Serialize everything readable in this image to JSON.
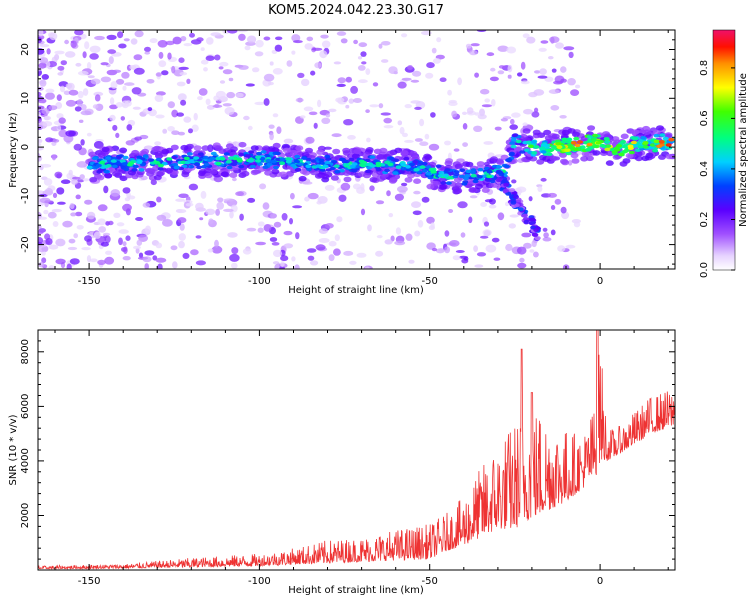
{
  "title": "KOM5.2024.042.23.30.G17",
  "chart_data": [
    {
      "type": "heatmap",
      "xlabel": "Height of straight line (km)",
      "ylabel": "Frequency (Hz)",
      "xlim": [
        -165,
        22
      ],
      "ylim": [
        -25,
        24
      ],
      "xticks": [
        -150,
        -100,
        -50,
        0
      ],
      "yticks": [
        -20,
        -10,
        0,
        10,
        20
      ],
      "colorbar": {
        "label": "Normalized spectral amplitude",
        "range": [
          0,
          0.95
        ],
        "ticks": [
          0.0,
          0.2,
          0.4,
          0.6,
          0.8
        ]
      },
      "ridge_frequency": {
        "x": [
          -165,
          -145,
          -125,
          -100,
          -85,
          -70,
          -55,
          -45,
          -35,
          -28,
          -25,
          -20,
          -10,
          -5,
          0,
          5,
          10,
          22
        ],
        "y": [
          -4,
          -3.5,
          -3,
          -2.5,
          -3.5,
          -3.5,
          -4,
          -6,
          -6,
          -5,
          1,
          0,
          0,
          0.5,
          1,
          -1,
          0.5,
          1
        ]
      }
    },
    {
      "type": "line",
      "xlabel": "Height of straight line (km)",
      "ylabel": "SNR (10 * v/v)",
      "xlim": [
        -165,
        22
      ],
      "ylim": [
        0,
        8800
      ],
      "xticks": [
        -150,
        -100,
        -50,
        0
      ],
      "yticks": [
        2000,
        4000,
        6000,
        8000
      ],
      "series": [
        {
          "color": "#ee3333",
          "envelope": {
            "x": [
              -165,
              -140,
              -120,
              -100,
              -90,
              -80,
              -70,
              -60,
              -50,
              -45,
              -40,
              -35,
              -30,
              -25,
              -22,
              -18,
              -15,
              -10,
              -5,
              -1,
              0,
              2,
              5,
              10,
              15,
              22
            ],
            "low": [
              40,
              60,
              100,
              150,
              200,
              250,
              300,
              350,
              400,
              700,
              900,
              1200,
              1500,
              1500,
              1800,
              2000,
              2200,
              2500,
              3000,
              3500,
              4000,
              4000,
              4200,
              4600,
              5000,
              5300
            ],
            "high": [
              150,
              220,
              450,
              600,
              800,
              1100,
              1200,
              1500,
              1700,
              2100,
              2700,
              3800,
              4700,
              5500,
              6000,
              6000,
              5700,
              5200,
              5000,
              6300,
              8800,
              5200,
              5200,
              5800,
              6400,
              6700
            ]
          },
          "peaks": [
            {
              "x": -23,
              "y": 8100
            },
            {
              "x": -0.8,
              "y": 8800
            },
            {
              "x": -20,
              "y": 6500
            }
          ]
        }
      ]
    }
  ]
}
